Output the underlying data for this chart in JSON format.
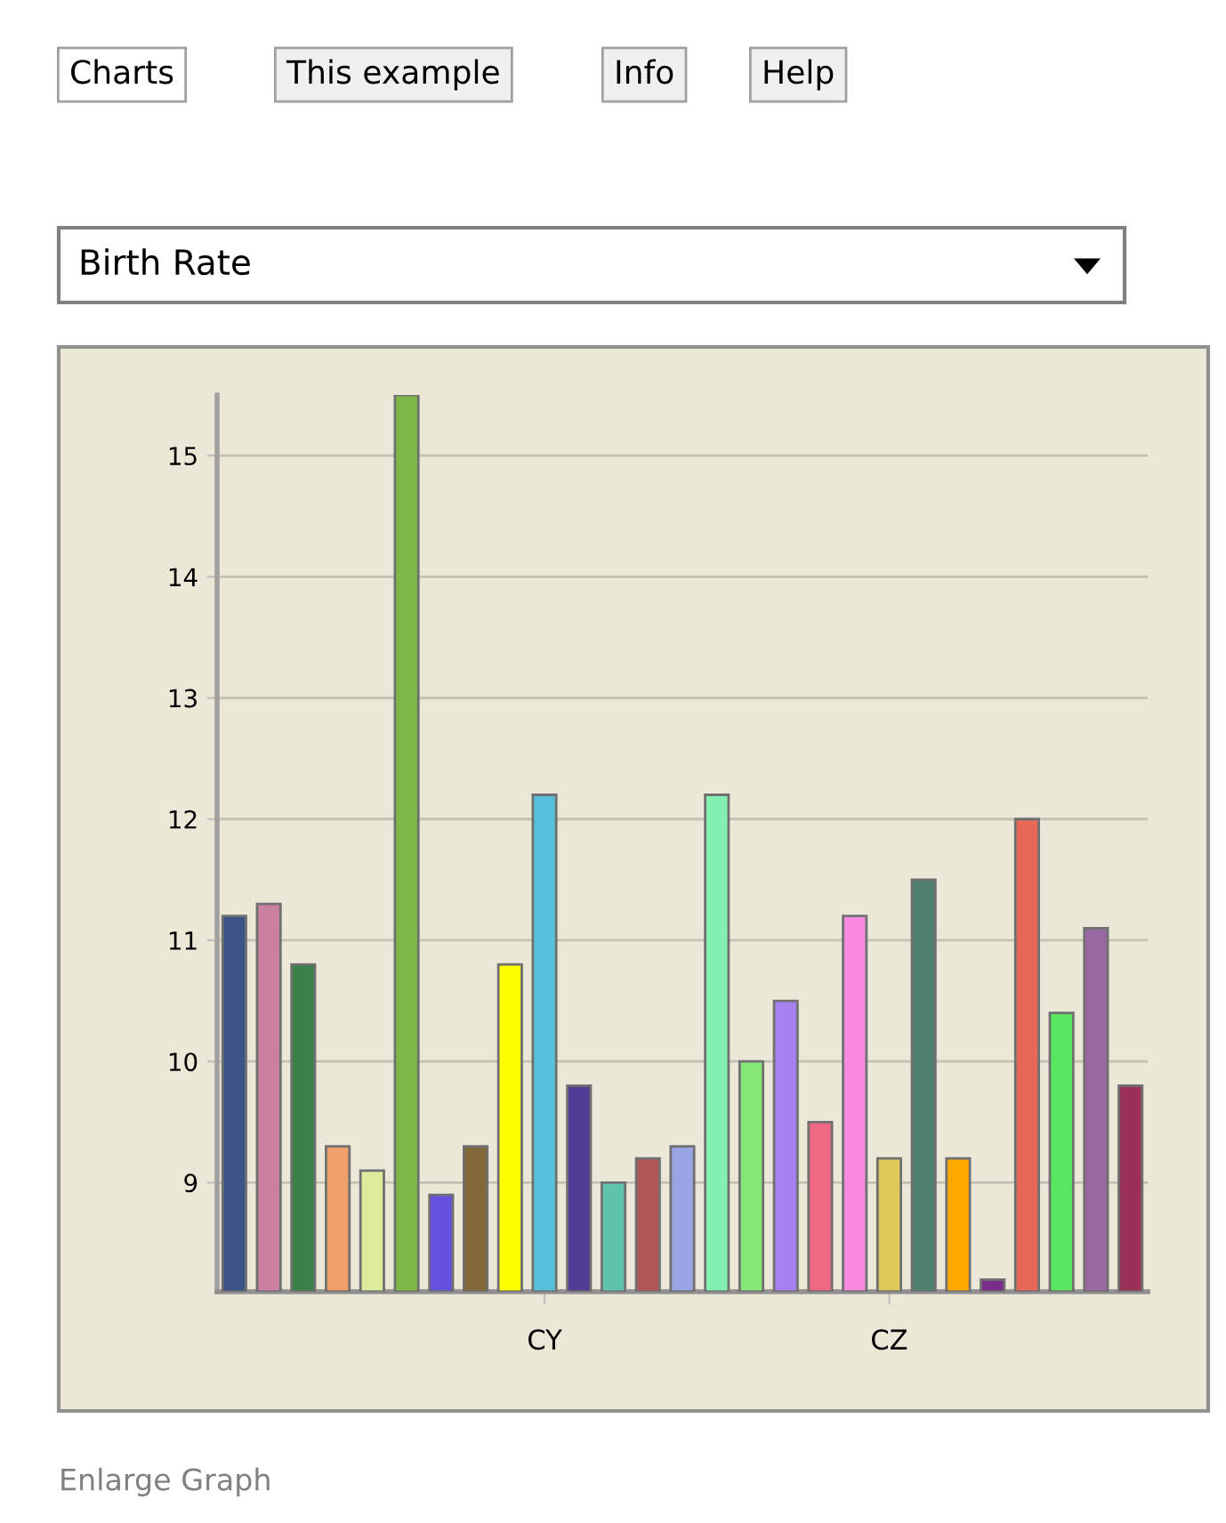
{
  "chart_data": {
    "type": "bar",
    "title": "Birth Rate",
    "annotations": [
      "Charts",
      "This example",
      "Info",
      "Help",
      "Enlarge Graph"
    ],
    "categories": [
      null,
      null,
      null,
      null,
      null,
      null,
      null,
      null,
      null,
      "CY",
      null,
      null,
      null,
      null,
      null,
      null,
      null,
      null,
      null,
      "CZ",
      null,
      null,
      null,
      null,
      null,
      null,
      null
    ],
    "values": [
      11.2,
      11.3,
      10.8,
      9.3,
      9.1,
      15.5,
      8.9,
      9.3,
      10.8,
      12.2,
      9.8,
      9.0,
      9.2,
      9.3,
      12.2,
      10.0,
      10.5,
      9.5,
      11.2,
      9.2,
      11.5,
      9.2,
      8.2,
      12.0,
      10.4,
      11.1,
      9.8
    ],
    "colors": [
      "#3c5485",
      "#cc80a0",
      "#3a8048",
      "#eea068",
      "#dcec9c",
      "#80b848",
      "#6650e0",
      "#806838",
      "#ffff00",
      "#58c0dc",
      "#503c94",
      "#60c4ac",
      "#b05858",
      "#98a4e4",
      "#84f0b0",
      "#84e878",
      "#a880f0",
      "#f06884",
      "#f888e0",
      "#e0c858",
      "#508070",
      "#ffa800",
      "#7a2c88",
      "#e86858",
      "#58e860",
      "#9868a0",
      "#983058"
    ],
    "ylim": [
      8.1,
      15.5
    ],
    "yticks": [
      9,
      10,
      11,
      12,
      13,
      14,
      15
    ],
    "grid": "y"
  }
}
